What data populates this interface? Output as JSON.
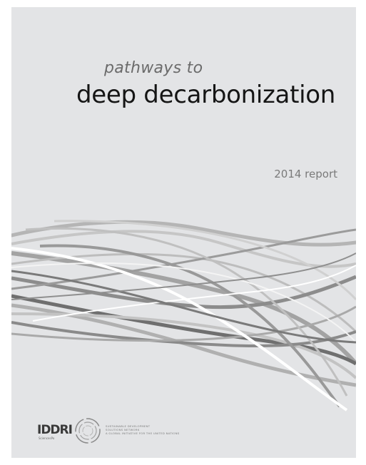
{
  "cover": {
    "title_sub": "pathways to",
    "title_main": "deep decarbonization",
    "report_year": "2014 report",
    "background_color": "#e3e4e6"
  },
  "logos": {
    "iddri": {
      "name": "IDDRI",
      "tagline": "SciencesPo"
    },
    "sdsn": {
      "line1": "SUSTAINABLE DEVELOPMENT",
      "line2": "SOLUTIONS NETWORK",
      "line3": "A GLOBAL INITIATIVE FOR THE UNITED NATIONS"
    }
  },
  "decoration": {
    "icon": "flowing-ribbon-lines",
    "ribbon_colors": [
      "#8a8a8a",
      "#a6a6a6",
      "#b9b9b9",
      "#ffffff",
      "#6f6f6f",
      "#c8c8c8"
    ]
  }
}
